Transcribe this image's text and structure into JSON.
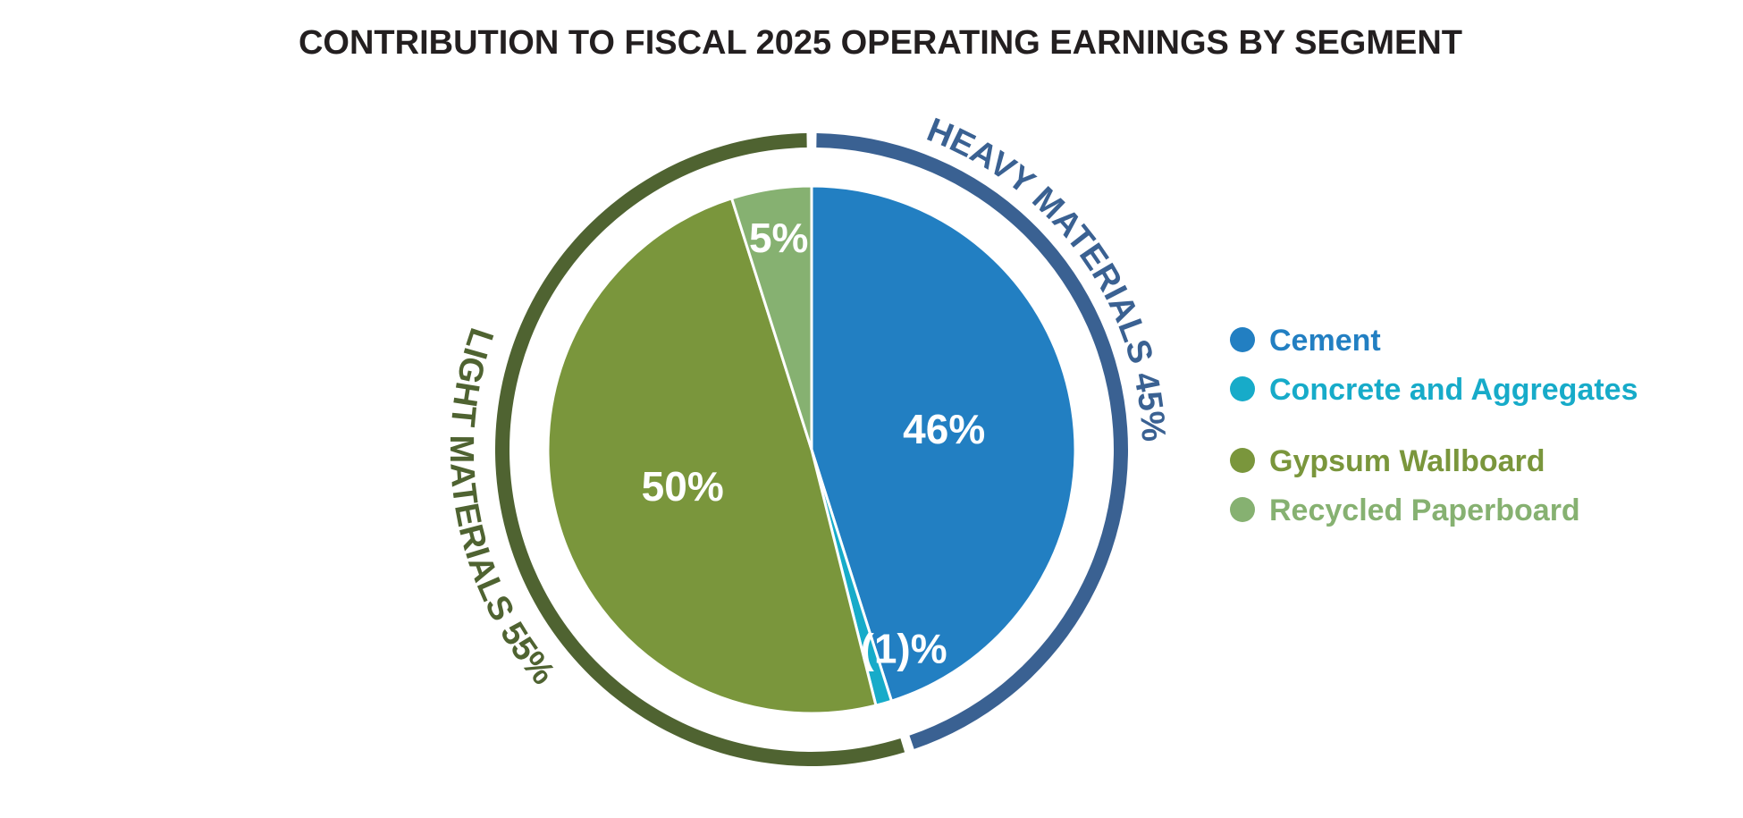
{
  "chart_data": {
    "type": "pie",
    "title": "CONTRIBUTION TO FISCAL 2025 OPERATING EARNINGS BY SEGMENT",
    "slices": [
      {
        "name": "Cement",
        "value": 46,
        "label": "46%",
        "color": "#227fc2",
        "group": "heavy"
      },
      {
        "name": "Concrete and Aggregates",
        "value": -1,
        "label": "(1)%",
        "color": "#17abc9",
        "group": "heavy"
      },
      {
        "name": "Gypsum Wallboard",
        "value": 50,
        "label": "50%",
        "color": "#7a963c",
        "group": "light"
      },
      {
        "name": "Recycled Paperboard",
        "value": 5,
        "label": "5%",
        "color": "#86b171",
        "group": "light"
      }
    ],
    "groups": [
      {
        "id": "heavy",
        "name": "HEAVY MATERIALS",
        "value": 45,
        "label": "45%",
        "color": "#3a6192"
      },
      {
        "id": "light",
        "name": "LIGHT MATERIALS",
        "value": 55,
        "label": "55%",
        "color": "#4f6331"
      }
    ],
    "legend": {
      "position": "right",
      "items": [
        {
          "label": "Cement",
          "color": "#227fc2"
        },
        {
          "label": "Concrete and Aggregates",
          "color": "#17abc9"
        },
        {
          "label": "Gypsum Wallboard",
          "color": "#7a963c"
        },
        {
          "label": "Recycled Paperboard",
          "color": "#86b171"
        }
      ]
    }
  }
}
